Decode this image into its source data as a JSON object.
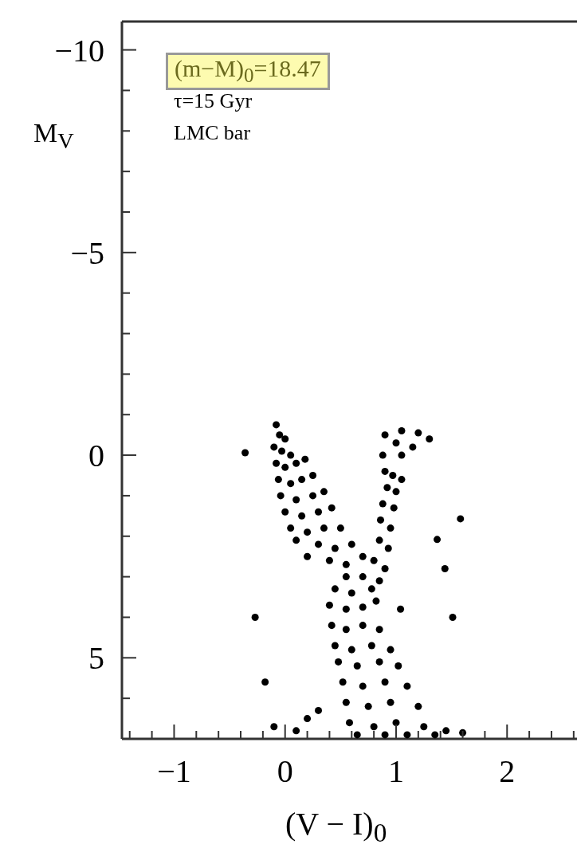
{
  "chart_data": {
    "type": "scatter",
    "xlabel": "(V − I)$_{0}$",
    "ylabel": "M$_{V}$",
    "annotations": [
      "(m−M)$_{0}$=18.47",
      "τ=15 Gyr",
      "LMC bar"
    ],
    "xlim": [
      -1.47,
      2.63
    ],
    "ylim": [
      7,
      -10.7
    ],
    "xticks": [
      {
        "value": -1.4,
        "label": null
      },
      {
        "value": -1.2,
        "label": null
      },
      {
        "value": -1,
        "label": "−1"
      },
      {
        "value": -0.8,
        "label": null
      },
      {
        "value": -0.6,
        "label": null
      },
      {
        "value": -0.4,
        "label": null
      },
      {
        "value": -0.2,
        "label": null
      },
      0,
      {
        "value": 0.2,
        "label": null
      },
      {
        "value": 0.4,
        "label": null
      },
      {
        "value": 0.6,
        "label": null
      },
      {
        "value": 0.8,
        "label": null
      },
      1,
      {
        "value": 1.2,
        "label": null
      },
      {
        "value": 1.4,
        "label": null
      },
      {
        "value": 1.6,
        "label": null
      },
      {
        "value": 1.8,
        "label": null
      },
      2,
      {
        "value": 2.2,
        "label": null
      },
      {
        "value": 2.4,
        "label": null
      },
      {
        "value": 2.6,
        "label": null
      }
    ],
    "yticks": [
      {
        "value": -10,
        "label": "−10"
      },
      {
        "value": -9,
        "label": null
      },
      {
        "value": -8,
        "label": null
      },
      {
        "value": -7,
        "label": null
      },
      {
        "value": -6,
        "label": null
      },
      {
        "value": -5,
        "label": "−5"
      },
      {
        "value": -4,
        "label": null
      },
      {
        "value": -3,
        "label": null
      },
      {
        "value": -2,
        "label": null
      },
      {
        "value": -1,
        "label": null
      },
      0,
      {
        "value": 1,
        "label": null
      },
      {
        "value": 2,
        "label": null
      },
      {
        "value": 3,
        "label": null
      },
      {
        "value": 4,
        "label": null
      },
      5,
      {
        "value": 6,
        "label": null
      }
    ],
    "marker": "circle",
    "series": [
      {
        "color": "#000000",
        "x": [
          -0.08,
          -0.05,
          0.0,
          -0.1,
          -0.03,
          0.05,
          -0.08,
          0.0,
          0.1,
          0.18,
          -0.06,
          0.05,
          0.15,
          0.25,
          -0.04,
          0.1,
          0.25,
          0.35,
          0.0,
          0.15,
          0.3,
          0.42,
          0.05,
          0.2,
          0.35,
          0.5,
          0.1,
          0.3,
          0.45,
          0.6,
          0.2,
          0.4,
          0.55,
          0.7,
          0.9,
          1.05,
          1.2,
          1.3,
          1.0,
          1.15,
          0.88,
          1.05,
          0.9,
          0.97,
          1.05,
          0.92,
          1.0,
          0.88,
          0.98,
          0.86,
          0.95,
          0.85,
          0.93,
          0.8,
          0.9,
          0.55,
          0.7,
          0.85,
          0.45,
          0.6,
          0.78,
          0.4,
          0.55,
          0.7,
          0.82,
          0.42,
          0.55,
          0.7,
          0.85,
          0.45,
          0.6,
          0.78,
          0.95,
          0.48,
          0.65,
          0.85,
          1.02,
          0.52,
          0.7,
          0.9,
          1.1,
          0.55,
          0.75,
          0.95,
          1.2,
          0.58,
          0.8,
          1.0,
          1.25,
          1.45,
          0.65,
          0.9,
          1.1,
          1.35,
          0.1,
          0.2,
          -0.1,
          0.3,
          1.6,
          -0.36,
          1.58,
          1.37,
          1.44,
          1.51,
          -0.27,
          -0.18,
          1.04
        ],
        "values": [
          -0.75,
          -0.5,
          -0.4,
          -0.2,
          -0.1,
          0.0,
          0.2,
          0.3,
          0.2,
          0.1,
          0.6,
          0.7,
          0.6,
          0.5,
          1.0,
          1.1,
          1.0,
          0.9,
          1.4,
          1.5,
          1.4,
          1.3,
          1.8,
          1.9,
          1.8,
          1.8,
          2.1,
          2.2,
          2.3,
          2.2,
          2.5,
          2.6,
          2.7,
          2.5,
          -0.5,
          -0.6,
          -0.55,
          -0.4,
          -0.3,
          -0.2,
          0.0,
          0.0,
          0.4,
          0.5,
          0.6,
          0.8,
          0.9,
          1.2,
          1.3,
          1.6,
          1.8,
          2.1,
          2.3,
          2.6,
          2.8,
          3.0,
          3.0,
          3.1,
          3.3,
          3.4,
          3.3,
          3.7,
          3.8,
          3.75,
          3.6,
          4.2,
          4.3,
          4.2,
          4.3,
          4.7,
          4.8,
          4.7,
          4.8,
          5.1,
          5.2,
          5.1,
          5.2,
          5.6,
          5.7,
          5.6,
          5.7,
          6.1,
          6.2,
          6.1,
          6.2,
          6.6,
          6.7,
          6.6,
          6.7,
          6.8,
          6.9,
          6.9,
          6.9,
          6.9,
          6.8,
          6.5,
          6.7,
          6.3,
          6.85,
          -0.06,
          1.57,
          2.08,
          2.8,
          4.0,
          4.0,
          5.6,
          3.8
        ]
      }
    ]
  }
}
